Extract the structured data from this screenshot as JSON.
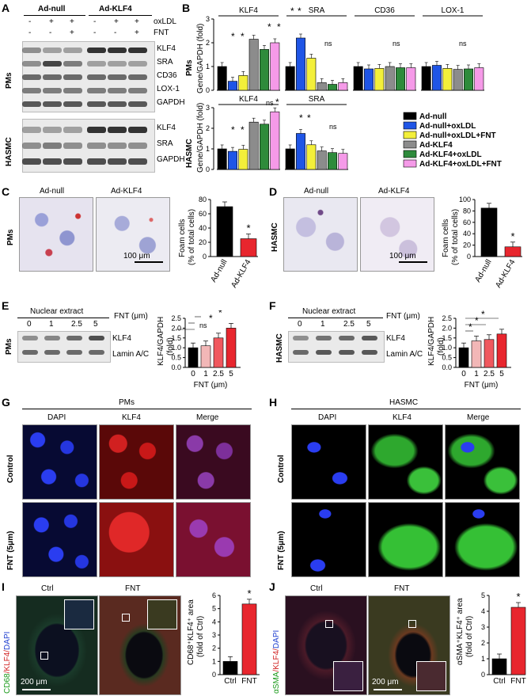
{
  "panels": {
    "A": "A",
    "B": "B",
    "C": "C",
    "D": "D",
    "E": "E",
    "F": "F",
    "G": "G",
    "H": "H",
    "I": "I",
    "J": "J"
  },
  "panel_a": {
    "groups": [
      "Ad-null",
      "Ad-KLF4"
    ],
    "oxldl_label": "oxLDL",
    "fnt_label": "FNT",
    "oxldl_signs": [
      "-",
      "+",
      "+",
      "-",
      "+",
      "+"
    ],
    "fnt_signs": [
      "-",
      "-",
      "+",
      "-",
      "-",
      "+"
    ],
    "pms_label": "PMs",
    "hasmc_label": "HASMC",
    "pms_rows": [
      "KLF4",
      "SRA",
      "CD36",
      "LOX-1",
      "GAPDH"
    ],
    "hasmc_rows": [
      "KLF4",
      "SRA",
      "GAPDH"
    ]
  },
  "panel_b": {
    "top_titles": [
      "KLF4",
      "SRA",
      "CD36",
      "LOX-1"
    ],
    "bottom_titles": [
      "KLF4",
      "SRA"
    ],
    "ylabel_top": [
      "PMs",
      "Gene/GAPDH (fold)"
    ],
    "ylabel_bottom": [
      "HASMC",
      "Gene/GAPDH (fold)"
    ],
    "ns": "ns",
    "star": "*",
    "legend": [
      "Ad-null",
      "Ad-null+oxLDL",
      "Ad-null+oxLDL+FNT",
      "Ad-KLF4",
      "Ad-KLF4+oxLDL",
      "Ad-KLF4+oxLDL+FNT"
    ],
    "colors": [
      "#000000",
      "#1f55e6",
      "#f3ef3a",
      "#8c8c8c",
      "#2e8b3b",
      "#f59ae8"
    ]
  },
  "panel_c": {
    "micro_labels": [
      "Ad-null",
      "Ad-KLF4"
    ],
    "row_label": "PMs",
    "scale": "100 μm",
    "ylabel": [
      "Foam cells",
      "(% of total cells)"
    ],
    "ticks": [
      "0",
      "20",
      "40",
      "60",
      "80"
    ]
  },
  "panel_d": {
    "micro_labels": [
      "Ad-null",
      "Ad-KLF4"
    ],
    "row_label": "HASMC",
    "scale": "100 μm",
    "ylabel": [
      "Foam cells",
      "(% of total cells)"
    ],
    "ticks": [
      "0",
      "20",
      "40",
      "60",
      "80",
      "100"
    ]
  },
  "panel_e": {
    "header": "Nuclear extract",
    "fnt": "FNT (μm)",
    "doses": [
      "0",
      "1",
      "2.5",
      "5"
    ],
    "rows": [
      "KLF4",
      "Lamin A/C"
    ],
    "row_label": "PMs",
    "ylabel": [
      "KLF4/GAPDH",
      "(fold)"
    ],
    "xlabel": "FNT (μm)",
    "ticks": [
      "0.0",
      "0.5",
      "1.0",
      "1.5",
      "2.0",
      "2.5"
    ],
    "ns": "ns"
  },
  "panel_f": {
    "header": "Nuclear extract",
    "fnt": "FNT (μm)",
    "doses": [
      "0",
      "1",
      "2.5",
      "5"
    ],
    "rows": [
      "KLF4",
      "Lamin A/C"
    ],
    "row_label": "HASMC",
    "ylabel": [
      "KLF4/GAPDH",
      "(fold)"
    ],
    "xlabel": "FNT (μm)",
    "ticks": [
      "0.0",
      "0.5",
      "1.0",
      "1.5",
      "2.0",
      "2.5"
    ]
  },
  "panel_g": {
    "title": "PMs",
    "cols": [
      "DAPI",
      "KLF4",
      "Merge"
    ],
    "rows": [
      "Control",
      "FNT (5μm)"
    ]
  },
  "panel_h": {
    "title": "HASMC",
    "cols": [
      "DAPI",
      "KLF4",
      "Merge"
    ],
    "rows": [
      "Control",
      "FNT (5μm)"
    ]
  },
  "panel_i": {
    "cols": [
      "Ctrl",
      "FNT"
    ],
    "stain": [
      "CD68",
      "/KLF4/",
      "DAPI"
    ],
    "scale": "200 μm",
    "ylabel": [
      "CD68⁺KLF4⁺ area",
      "(fold of Ctrl)"
    ],
    "ticks": [
      "0",
      "1",
      "2",
      "3",
      "4",
      "5",
      "6"
    ],
    "categories": [
      "Ctrl",
      "FNT"
    ]
  },
  "panel_j": {
    "cols": [
      "Ctrl",
      "FNT"
    ],
    "stain": [
      "αSMA",
      "/KLF4/",
      "DAPI"
    ],
    "scale": "200 μm",
    "ylabel": [
      "αSMA⁺KLF4⁺ area",
      "(fold of Ctrl)"
    ],
    "ticks": [
      "0",
      "1",
      "2",
      "3",
      "4",
      "5"
    ],
    "categories": [
      "Ctrl",
      "FNT"
    ]
  },
  "chart_data": [
    {
      "id": "B-PMs",
      "type": "bar",
      "ylim": [
        0,
        3
      ],
      "yticks": [
        "0",
        "1",
        "2",
        "3"
      ],
      "groups": [
        {
          "title": "KLF4",
          "values": [
            1.0,
            0.38,
            0.62,
            2.15,
            1.72,
            2.0
          ]
        },
        {
          "title": "SRA",
          "values": [
            1.0,
            2.2,
            1.35,
            0.32,
            0.25,
            0.32
          ]
        },
        {
          "title": "CD36",
          "values": [
            1.0,
            0.9,
            0.92,
            1.0,
            0.95,
            0.95
          ]
        },
        {
          "title": "LOX-1",
          "values": [
            1.0,
            1.05,
            0.92,
            0.88,
            0.9,
            0.95
          ]
        }
      ]
    },
    {
      "id": "B-HASMC",
      "type": "bar",
      "ylim": [
        0,
        3
      ],
      "yticks": [
        "0",
        "1",
        "2",
        "3"
      ],
      "groups": [
        {
          "title": "KLF4",
          "values": [
            1.0,
            0.88,
            0.98,
            2.3,
            2.2,
            2.8
          ]
        },
        {
          "title": "SRA",
          "values": [
            1.0,
            1.75,
            1.2,
            0.9,
            0.82,
            0.78
          ]
        }
      ]
    },
    {
      "id": "C",
      "type": "bar",
      "categories": [
        "Ad-null",
        "Ad-KLF4"
      ],
      "values": [
        70,
        25
      ],
      "ylim": [
        0,
        80
      ]
    },
    {
      "id": "D",
      "type": "bar",
      "categories": [
        "Ad-null",
        "Ad-KLF4"
      ],
      "values": [
        85,
        17
      ],
      "ylim": [
        0,
        100
      ]
    },
    {
      "id": "E",
      "type": "bar",
      "categories": [
        "0",
        "1",
        "2.5",
        "5"
      ],
      "values": [
        1.0,
        1.1,
        1.5,
        2.0
      ],
      "ylim": [
        0,
        2.5
      ]
    },
    {
      "id": "F",
      "type": "bar",
      "categories": [
        "0",
        "1",
        "2.5",
        "5"
      ],
      "values": [
        1.0,
        1.35,
        1.42,
        1.7
      ],
      "ylim": [
        0,
        2.5
      ]
    },
    {
      "id": "I",
      "type": "bar",
      "categories": [
        "Ctrl",
        "FNT"
      ],
      "values": [
        1.0,
        5.35
      ],
      "ylim": [
        0,
        6
      ]
    },
    {
      "id": "J",
      "type": "bar",
      "categories": [
        "Ctrl",
        "FNT"
      ],
      "values": [
        1.0,
        4.25
      ],
      "ylim": [
        0,
        5
      ]
    }
  ]
}
